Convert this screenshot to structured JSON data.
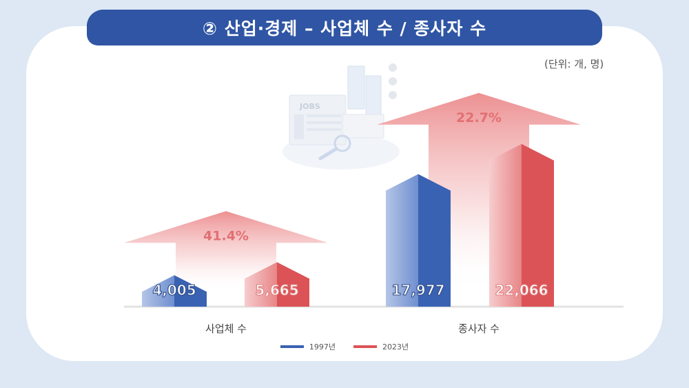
{
  "header": {
    "title": "② 산업·경제 – 사업체 수 / 종사자 수"
  },
  "unit_label": "(단위: 개, 명)",
  "illustration": {
    "sign_text": "JOBS",
    "icon": "jobs-newspaper-icon"
  },
  "colors": {
    "series_1997": "#3a62b3",
    "series_2023": "#db5356",
    "growth_arrow": "#ec8a8c"
  },
  "legend": [
    {
      "label": "1997년",
      "color": "#3a62b3"
    },
    {
      "label": "2023년",
      "color": "#db5356"
    }
  ],
  "chart_data": {
    "type": "bar",
    "categories": [
      "사업체 수",
      "종사자 수"
    ],
    "series": [
      {
        "name": "1997년",
        "values": [
          4005,
          17977
        ]
      },
      {
        "name": "2023년",
        "values": [
          5665,
          22066
        ]
      }
    ],
    "value_labels": [
      [
        "4,005",
        "5,665"
      ],
      [
        "17,977",
        "22,066"
      ]
    ],
    "growth_labels": [
      "41.4%",
      "22.7%"
    ],
    "legend_position": "bottom",
    "grid": false
  }
}
